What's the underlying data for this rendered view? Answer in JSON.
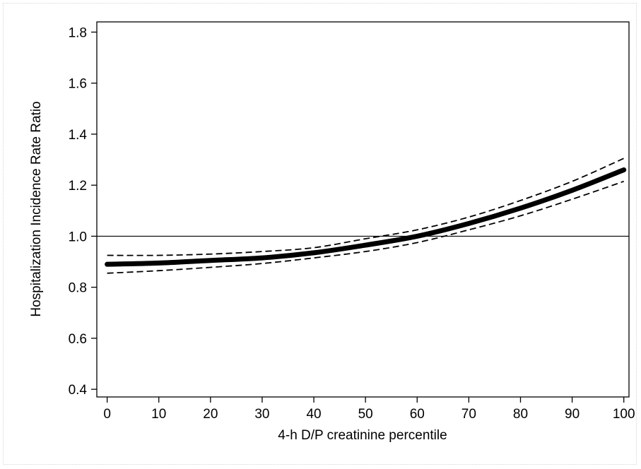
{
  "chart_data": {
    "type": "line",
    "title": "",
    "xlabel": "4-h D/P creatinine percentile",
    "ylabel": "Hospitalization Incidence Rate Ratio",
    "xlim": [
      -2,
      101
    ],
    "ylim": [
      0.37,
      1.84
    ],
    "xticks": [
      0,
      10,
      20,
      30,
      40,
      50,
      60,
      70,
      80,
      90,
      100
    ],
    "yticks": [
      0.4,
      0.6,
      0.8,
      1.0,
      1.2,
      1.4,
      1.6,
      1.8
    ],
    "ytick_labels": [
      "0.4",
      "0.6",
      "0.8",
      "1.0",
      "1.2",
      "1.4",
      "1.6",
      "1.8"
    ],
    "reference_line": 1.0,
    "grid": false,
    "legend": "none",
    "x": [
      0,
      10,
      20,
      30,
      40,
      50,
      60,
      70,
      80,
      90,
      100
    ],
    "series": [
      {
        "role": "estimate",
        "style": "thick-solid",
        "color": "#000000",
        "values": [
          0.89,
          0.895,
          0.905,
          0.915,
          0.935,
          0.965,
          1.0,
          1.05,
          1.11,
          1.18,
          1.26
        ]
      },
      {
        "role": "upper",
        "style": "dashed",
        "color": "#000000",
        "values": [
          0.925,
          0.925,
          0.93,
          0.94,
          0.955,
          0.99,
          1.025,
          1.075,
          1.14,
          1.215,
          1.305
        ]
      },
      {
        "role": "lower",
        "style": "dashed",
        "color": "#000000",
        "values": [
          0.855,
          0.865,
          0.878,
          0.893,
          0.915,
          0.94,
          0.975,
          1.025,
          1.08,
          1.145,
          1.215
        ]
      }
    ]
  }
}
